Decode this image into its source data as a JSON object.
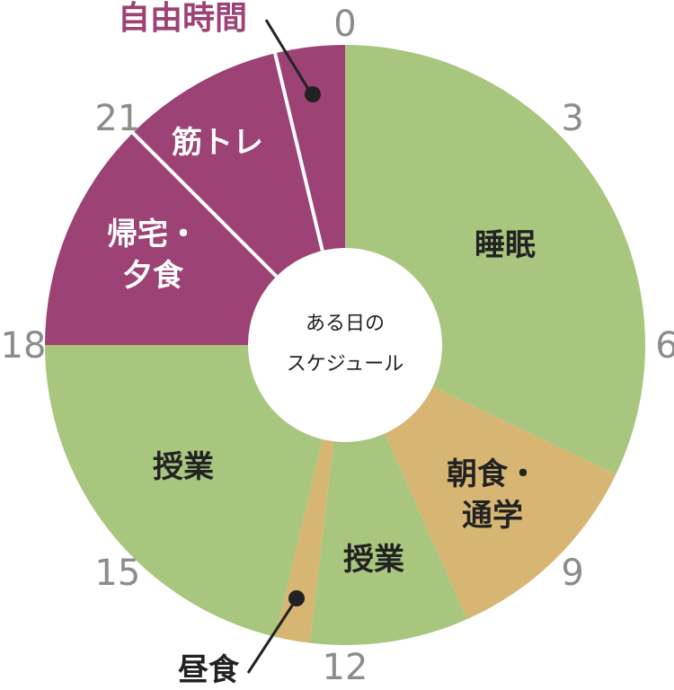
{
  "chart_data": {
    "type": "pie",
    "title": "自由時間",
    "center_label": [
      "ある日の",
      "スケジュール"
    ],
    "hour_labels": [
      "0",
      "3",
      "6",
      "9",
      "12",
      "15",
      "18",
      "21"
    ],
    "segments": [
      {
        "name": "睡眠",
        "start": 0,
        "end": 7.7,
        "color": "#a8c67e",
        "label": [
          "睡眠"
        ],
        "text_color": "#222222"
      },
      {
        "name": "朝食・通学",
        "start": 7.7,
        "end": 10.4,
        "color": "#d6b672",
        "label": [
          "朝食・",
          "通学"
        ],
        "text_color": "#222222"
      },
      {
        "name": "授業",
        "start": 10.4,
        "end": 12.45,
        "color": "#a8c67e",
        "label": [
          "授業"
        ],
        "text_color": "#222222"
      },
      {
        "name": "昼食",
        "start": 12.45,
        "end": 12.9,
        "color": "#d6b672",
        "label": [],
        "text_color": "#222222"
      },
      {
        "name": "授業",
        "start": 12.9,
        "end": 18,
        "color": "#a8c67e",
        "label": [
          "授業"
        ],
        "text_color": "#222222"
      },
      {
        "name": "帰宅・夕食",
        "start": 18,
        "end": 21,
        "color": "#9c4275",
        "label": [
          "帰宅・",
          "夕食"
        ],
        "text_color": "#ffffff"
      },
      {
        "name": "筋トレ",
        "start": 21,
        "end": 23.1,
        "color": "#9c4275",
        "label": [
          "筋トレ"
        ],
        "text_color": "#ffffff"
      },
      {
        "name": "自由時間",
        "start": 23.1,
        "end": 24,
        "color": "#9c4275",
        "label": [],
        "text_color": "#ffffff"
      }
    ],
    "callouts": [
      {
        "name": "自由時間",
        "color": "#9c4275"
      },
      {
        "name": "昼食",
        "color": "#222222"
      }
    ],
    "colors": {
      "primary": "#a8c67e",
      "meal": "#d6b672",
      "free": "#9c4275",
      "hour_text": "#8c8c8c"
    }
  }
}
